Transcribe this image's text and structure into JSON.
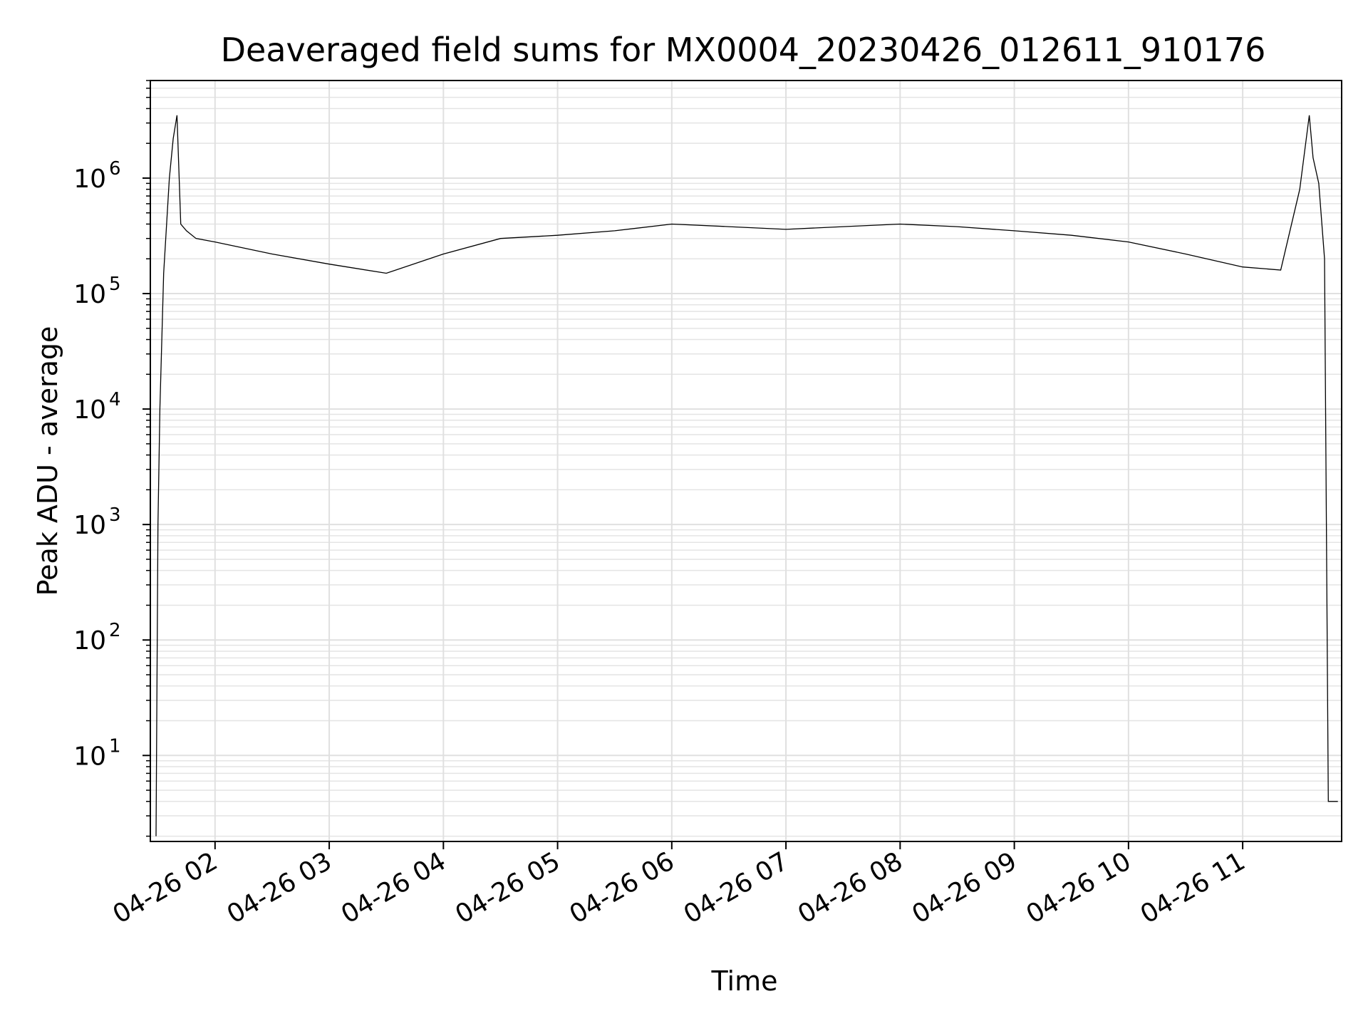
{
  "chart_data": {
    "type": "line",
    "title": "Deaveraged field sums for MX0004_20230426_012611_910176",
    "xlabel": "Time",
    "ylabel": "Peak ADU - average",
    "yscale": "log",
    "ylim": [
      1.8,
      7000000
    ],
    "xlim": [
      "04-26 01:26",
      "04-26 11:52"
    ],
    "grid": true,
    "legend": "none",
    "line_color": "#000000",
    "x_tick_labels": [
      "04-26 02",
      "04-26 03",
      "04-26 04",
      "04-26 05",
      "04-26 06",
      "04-26 07",
      "04-26 08",
      "04-26 09",
      "04-26 10",
      "04-26 11"
    ],
    "y_tick_labels": [
      {
        "value": 10,
        "base": "10",
        "exp": "1"
      },
      {
        "value": 100,
        "base": "10",
        "exp": "2"
      },
      {
        "value": 1000,
        "base": "10",
        "exp": "3"
      },
      {
        "value": 10000,
        "base": "10",
        "exp": "4"
      },
      {
        "value": 100000,
        "base": "10",
        "exp": "5"
      },
      {
        "value": 1000000,
        "base": "10",
        "exp": "6"
      }
    ],
    "series": [
      {
        "x": [
          "04-26 01:29",
          "04-26 01:30",
          "04-26 01:31",
          "04-26 01:33",
          "04-26 01:36",
          "04-26 01:38",
          "04-26 01:40",
          "04-26 01:42",
          "04-26 01:45",
          "04-26 01:50",
          "04-26 02:00",
          "04-26 02:30",
          "04-26 03:00",
          "04-26 03:30",
          "04-26 04:00",
          "04-26 04:30",
          "04-26 05:00",
          "04-26 05:30",
          "04-26 06:00",
          "04-26 06:30",
          "04-26 07:00",
          "04-26 07:30",
          "04-26 08:00",
          "04-26 08:30",
          "04-26 09:00",
          "04-26 09:30",
          "04-26 10:00",
          "04-26 10:30",
          "04-26 11:00",
          "04-26 11:20",
          "04-26 11:30",
          "04-26 11:35",
          "04-26 11:37",
          "04-26 11:40",
          "04-26 11:43",
          "04-26 11:44",
          "04-26 11:45",
          "04-26 11:50"
        ],
        "y": [
          2,
          1000,
          10000,
          150000,
          1000000,
          2200000,
          3500000,
          400000,
          350000,
          300000,
          280000,
          220000,
          180000,
          150000,
          220000,
          300000,
          320000,
          350000,
          400000,
          380000,
          360000,
          380000,
          400000,
          380000,
          350000,
          320000,
          280000,
          220000,
          170000,
          160000,
          800000,
          3500000,
          1500000,
          900000,
          200000,
          1000,
          4,
          4
        ]
      }
    ]
  }
}
